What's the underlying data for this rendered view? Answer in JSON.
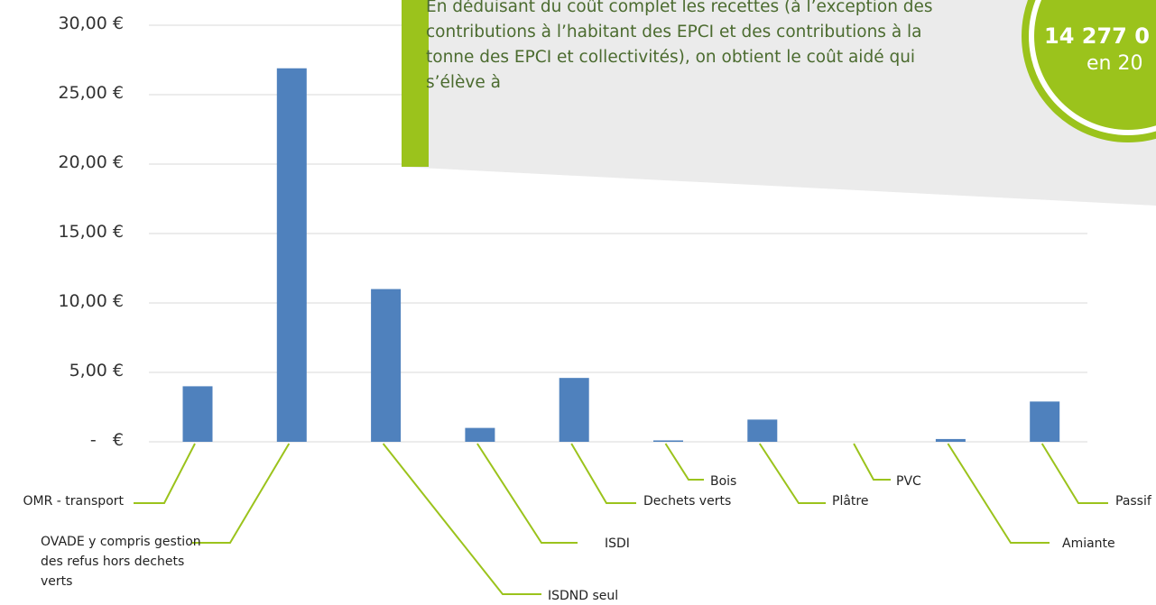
{
  "chart_data": {
    "type": "bar",
    "categories": [
      "OMR - transport",
      "OVADE y compris gestion des refus hors dechets verts",
      "ISDND seul",
      "ISDI",
      "Dechets verts",
      "Bois",
      "Plâtre",
      "PVC",
      "Amiante",
      "Passif"
    ],
    "values": [
      4.0,
      26.9,
      11.0,
      1.0,
      4.6,
      0.1,
      1.6,
      0,
      0.2,
      2.9
    ],
    "color": "#4f81bd",
    "ylim": [
      0,
      30
    ],
    "yticks": [
      {
        "value": 0,
        "label": "-   €"
      },
      {
        "value": 5,
        "label": "5,00 €"
      },
      {
        "value": 10,
        "label": "10,00 €"
      },
      {
        "value": 15,
        "label": "15,00 €"
      },
      {
        "value": 20,
        "label": "20,00 €"
      },
      {
        "value": 25,
        "label": "25,00 €"
      },
      {
        "value": 30,
        "label": "30,00 €"
      }
    ],
    "grid": true
  },
  "callout": {
    "text": "En déduisant du coût complet les recettes (à l’exception des contributions à l’habitant des EPCI et des contributions à la tonne des EPCI et collectivités), on obtient le coût aidé qui s’élève à",
    "badge_value": "14 277 0",
    "badge_sub": "en 20"
  }
}
